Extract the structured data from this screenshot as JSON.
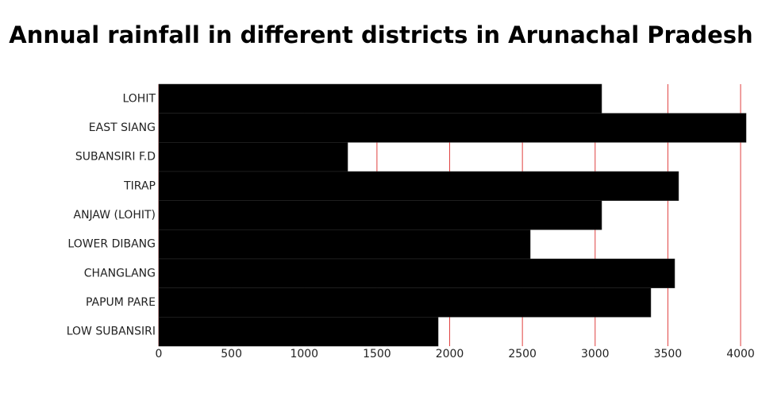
{
  "chart_data": {
    "type": "barh",
    "title": "Annual rainfall in different districts in Arunachal Pradesh",
    "categories": [
      "LOHIT",
      "EAST SIANG",
      "SUBANSIRI F.D",
      "TIRAP",
      "ANJAW (LOHIT)",
      "LOWER DIBANG",
      "CHANGLANG",
      "PAPUM PARE",
      "LOW SUBANSIRI"
    ],
    "values": [
      3045,
      4038,
      1299,
      3574,
      3045,
      2554,
      3547,
      3383,
      1921
    ],
    "color": "#000000",
    "xlim": [
      0,
      4038
    ],
    "xticks": [
      0,
      500,
      1000,
      1500,
      2000,
      2500,
      3000,
      3500,
      4000
    ],
    "grid": true,
    "grid_color": "#e0403f"
  }
}
